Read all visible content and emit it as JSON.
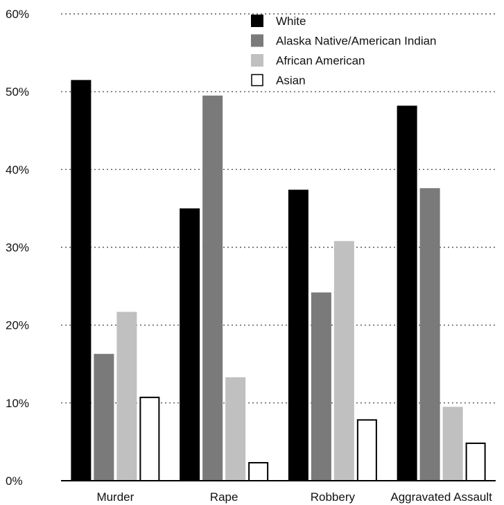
{
  "chart_data": {
    "type": "bar",
    "title": "",
    "xlabel": "",
    "ylabel": "",
    "categories": [
      "Murder",
      "Rape",
      "Robbery",
      "Aggravated Assault"
    ],
    "series": [
      {
        "name": "White",
        "color": "#000000",
        "values": [
          51.5,
          35.0,
          37.4,
          48.2
        ]
      },
      {
        "name": "Alaska Native/American Indian",
        "color": "#7a7a7a",
        "values": [
          16.3,
          49.5,
          24.2,
          37.6
        ]
      },
      {
        "name": "African American",
        "color": "#c0c0c0",
        "values": [
          21.7,
          13.3,
          30.8,
          9.5
        ]
      },
      {
        "name": "Asian",
        "color": "#ffffff",
        "values": [
          10.8,
          2.4,
          7.9,
          4.9
        ]
      }
    ],
    "ylim": [
      0,
      60
    ],
    "yticks": [
      "0%",
      "10%",
      "20%",
      "30%",
      "40%",
      "50%",
      "60%"
    ],
    "grid": true,
    "legend_position": "top-right"
  }
}
